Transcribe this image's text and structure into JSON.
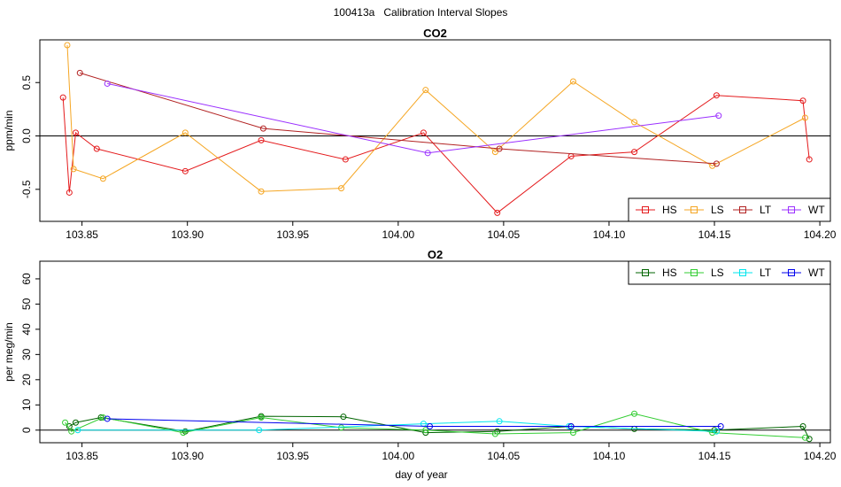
{
  "figure": {
    "run_id": "100413a",
    "title": "Calibration Interval Slopes",
    "xlabel": "day of year"
  },
  "chart_data": [
    {
      "type": "line",
      "title": "CO2",
      "xlabel": "",
      "ylabel": "ppm/min",
      "xlim": [
        103.83,
        104.205
      ],
      "ylim": [
        -0.8,
        0.9
      ],
      "xticks": [
        103.85,
        103.9,
        103.95,
        104.0,
        104.05,
        104.1,
        104.15,
        104.2
      ],
      "xtick_labels": [
        "103.85",
        "103.90",
        "103.95",
        "104.00",
        "104.05",
        "104.10",
        "104.15",
        "104.20"
      ],
      "yticks": [
        -0.5,
        0.0,
        0.5
      ],
      "ytick_labels": [
        "-0.5",
        "0.0",
        "0.5"
      ],
      "reference_line": 0,
      "legend_position": "bottom-right",
      "series": [
        {
          "name": "HS",
          "color": "#e41a1c",
          "x": [
            103.841,
            103.844,
            103.847,
            103.857,
            103.899,
            103.935,
            103.975,
            104.012,
            104.047,
            104.082,
            104.112,
            104.151,
            104.192,
            104.195
          ],
          "y": [
            0.36,
            -0.53,
            0.03,
            -0.12,
            -0.33,
            -0.04,
            -0.22,
            0.03,
            -0.72,
            -0.19,
            -0.15,
            0.38,
            0.33,
            -0.22
          ]
        },
        {
          "name": "LS",
          "color": "#f5a623",
          "x": [
            103.843,
            103.846,
            103.86,
            103.899,
            103.935,
            103.973,
            104.013,
            104.046,
            104.083,
            104.112,
            104.149,
            104.193
          ],
          "y": [
            0.85,
            -0.31,
            -0.4,
            0.03,
            -0.52,
            -0.49,
            0.43,
            -0.15,
            0.51,
            0.13,
            -0.28,
            0.17
          ]
        },
        {
          "name": "LT",
          "color": "#b22222",
          "x": [
            103.849,
            103.936,
            104.048,
            104.151
          ],
          "y": [
            0.59,
            0.07,
            -0.12,
            -0.26
          ]
        },
        {
          "name": "WT",
          "color": "#9b30ff",
          "x": [
            103.862,
            104.014,
            104.152
          ],
          "y": [
            0.49,
            -0.16,
            0.19
          ]
        }
      ]
    },
    {
      "type": "line",
      "title": "O2",
      "xlabel": "day of year",
      "ylabel": "per meg/min",
      "xlim": [
        103.83,
        104.205
      ],
      "ylim": [
        -5,
        67
      ],
      "xticks": [
        103.85,
        103.9,
        103.95,
        104.0,
        104.05,
        104.1,
        104.15,
        104.2
      ],
      "xtick_labels": [
        "103.85",
        "103.90",
        "103.95",
        "104.00",
        "104.05",
        "104.10",
        "104.15",
        "104.20"
      ],
      "yticks": [
        0,
        10,
        20,
        30,
        40,
        50,
        60
      ],
      "ytick_labels": [
        "0",
        "10",
        "20",
        "30",
        "40",
        "50",
        "60"
      ],
      "reference_line": 0,
      "legend_position": "top-right",
      "series": [
        {
          "name": "HS",
          "color": "#006400",
          "x": [
            103.844,
            103.847,
            103.859,
            103.899,
            103.935,
            103.974,
            104.013,
            104.047,
            104.082,
            104.112,
            104.15,
            104.192,
            104.195
          ],
          "y": [
            1.5,
            3,
            5,
            -0.5,
            5.5,
            5.3,
            -1,
            -0.5,
            1.5,
            0.5,
            0,
            1.5,
            -3.5
          ]
        },
        {
          "name": "LS",
          "color": "#32cd32",
          "x": [
            103.842,
            103.845,
            103.86,
            103.898,
            103.935,
            103.973,
            104.013,
            104.046,
            104.083,
            104.112,
            104.149,
            104.193
          ],
          "y": [
            3,
            -0.5,
            5,
            -1,
            5,
            1,
            0,
            -1.5,
            -1,
            6.5,
            -1,
            -3
          ]
        },
        {
          "name": "LT",
          "color": "#00e5ee",
          "x": [
            103.848,
            103.934,
            104.012,
            104.048,
            104.081,
            104.151
          ],
          "y": [
            0,
            0,
            2.5,
            3.5,
            1.5,
            -0.5
          ]
        },
        {
          "name": "WT",
          "color": "#0000ee",
          "x": [
            103.862,
            104.015,
            104.082,
            104.153
          ],
          "y": [
            4.5,
            1.5,
            1.5,
            1.5
          ]
        }
      ]
    }
  ]
}
